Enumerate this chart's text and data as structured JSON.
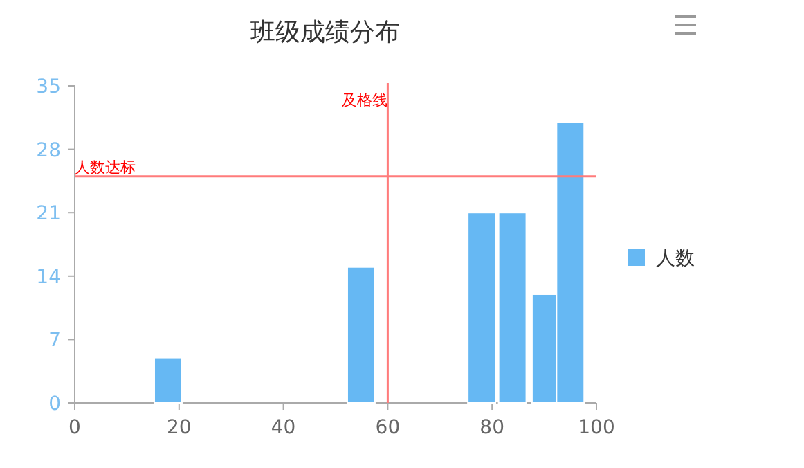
{
  "chart_data": {
    "type": "bar",
    "title": "班级成绩分布",
    "x": [
      17.9,
      54.9,
      78,
      83.9,
      90.3,
      95
    ],
    "series": [
      {
        "name": "人数",
        "color": "#66b8f3",
        "values": [
          5,
          15,
          21,
          21,
          12,
          31
        ]
      }
    ],
    "xlim": [
      0,
      100
    ],
    "xticks": [
      0,
      20,
      40,
      60,
      80,
      100
    ],
    "ylim": [
      0,
      35
    ],
    "yticks": [
      0,
      7,
      14,
      21,
      28,
      35
    ],
    "ref_lines": [
      {
        "axis": "x",
        "value": 60,
        "label": "及格线",
        "color": "#ff7b7b"
      },
      {
        "axis": "y",
        "value": 25,
        "label": "人数达标",
        "color": "#ff7b7b"
      }
    ],
    "grid": false,
    "legend": "right"
  }
}
